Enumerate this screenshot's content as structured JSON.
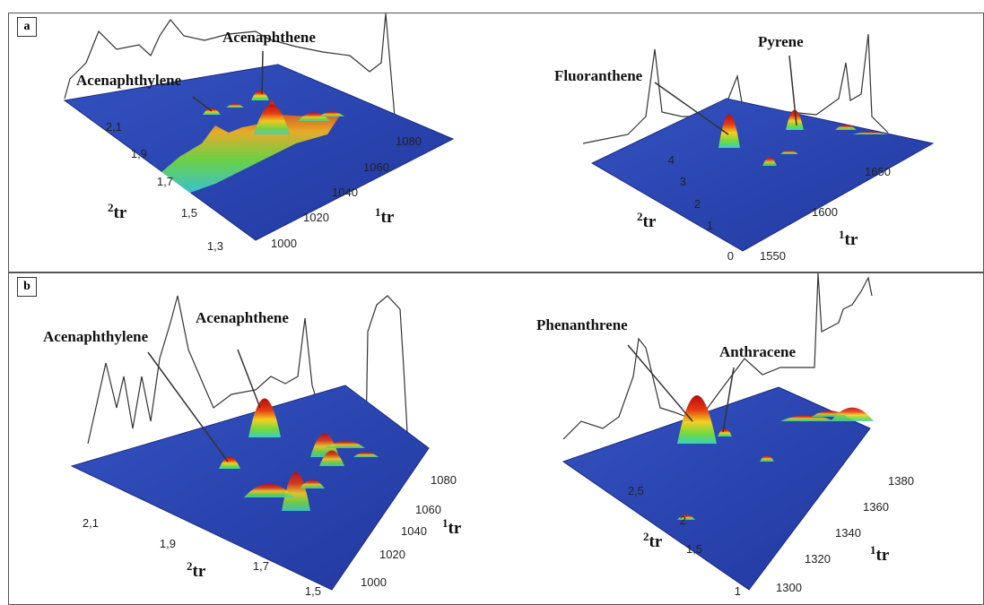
{
  "panels": [
    {
      "tag": "a"
    },
    {
      "tag": "b"
    }
  ],
  "colors": {
    "surface_base": "#2b44b0",
    "peak_low": "#2fd0c8",
    "peak_mid": "#7de040",
    "peak_high": "#f0c020",
    "peak_top": "#c81010"
  },
  "chart_data": [
    {
      "type": "surface3d",
      "panel": "a",
      "x_axis_label": "1tr",
      "y_axis_label": "2tr",
      "x_ticks": [
        "1000",
        "1020",
        "1040",
        "1060",
        "1080"
      ],
      "y_ticks": [
        "1,3",
        "1,5",
        "1,7",
        "1,9",
        "2,1"
      ],
      "xlim": [
        1000,
        1090
      ],
      "ylim": [
        1.3,
        2.3
      ],
      "peaks": [
        {
          "label": "Acenaphthylene",
          "x": 1048,
          "y": 2.1,
          "height": 0.15
        },
        {
          "label": "Acenaphthene",
          "x": 1060,
          "y": 2.15,
          "height": 0.2
        }
      ],
      "ridge": {
        "x_start": 1005,
        "x_end": 1075,
        "y": 1.85,
        "height": 0.55
      }
    },
    {
      "type": "surface3d",
      "panel": "a",
      "x_axis_label": "1tr",
      "y_axis_label": "2tr",
      "x_ticks": [
        "1550",
        "1600",
        "1650"
      ],
      "y_ticks": [
        "0",
        "1",
        "2",
        "3",
        "4"
      ],
      "xlim": [
        1550,
        1680
      ],
      "ylim": [
        0,
        4.5
      ],
      "peaks": [
        {
          "label": "Fluoranthene",
          "x": 1610,
          "y": 3.6,
          "height": 0.8
        },
        {
          "label": "Pyrene",
          "x": 1640,
          "y": 3.9,
          "height": 0.5
        }
      ]
    },
    {
      "type": "surface3d",
      "panel": "b",
      "x_axis_label": "1tr",
      "y_axis_label": "2tr",
      "x_ticks": [
        "1000",
        "1020",
        "1040",
        "1060",
        "1080"
      ],
      "y_ticks": [
        "1,5",
        "1,7",
        "1,9",
        "2,1"
      ],
      "xlim": [
        1000,
        1090
      ],
      "ylim": [
        1.5,
        2.3
      ],
      "peaks": [
        {
          "label": "Acenaphthylene",
          "x": 1025,
          "y": 2.15,
          "height": 0.2
        },
        {
          "label": "Acenaphthene",
          "x": 1040,
          "y": 2.2,
          "height": 1.0
        }
      ]
    },
    {
      "type": "surface3d",
      "panel": "b",
      "x_axis_label": "1tr",
      "y_axis_label": "2tr",
      "x_ticks": [
        "1300",
        "1320",
        "1340",
        "1360",
        "1380"
      ],
      "y_ticks": [
        "1",
        "1,5",
        "2",
        "2,5"
      ],
      "xlim": [
        1300,
        1390
      ],
      "ylim": [
        1,
        3
      ],
      "peaks": [
        {
          "label": "Phenanthrene",
          "x": 1310,
          "y": 2.7,
          "height": 1.0
        },
        {
          "label": "Anthracene",
          "x": 1318,
          "y": 2.6,
          "height": 0.2
        }
      ]
    }
  ]
}
